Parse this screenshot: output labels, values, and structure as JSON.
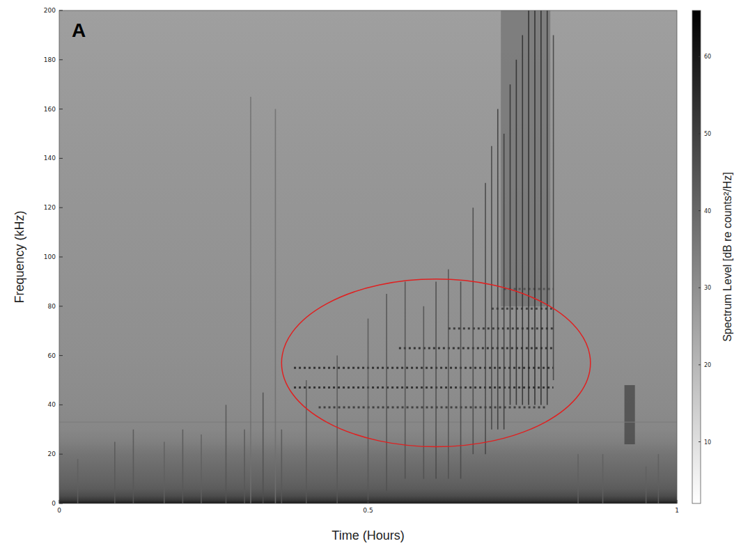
{
  "chart_data": {
    "type": "heatmap",
    "panel": "A",
    "x_label": "Time (Hours)",
    "y_label": "Frequency (kHz)",
    "xlim": [
      0,
      1
    ],
    "xticks": [
      0,
      0.5,
      1
    ],
    "ylim": [
      0,
      200
    ],
    "yticks": [
      0,
      20,
      40,
      60,
      80,
      100,
      120,
      140,
      160,
      180,
      200
    ],
    "colorbar": {
      "label": "Spectrum Level [dB re counts²/Hz]",
      "range": [
        2,
        66
      ],
      "ticks": [
        10,
        20,
        30,
        40,
        50,
        60
      ]
    },
    "background": {
      "frequencies": [
        0,
        1,
        3,
        6,
        10,
        15,
        20,
        25,
        30,
        40,
        60,
        100,
        140,
        170,
        200
      ],
      "levels": [
        62,
        53,
        47,
        43,
        41,
        39,
        37,
        34,
        32,
        31,
        30,
        29,
        28,
        27,
        26
      ]
    },
    "patches": [
      {
        "t0": 0.715,
        "t1": 0.795,
        "f0": 80,
        "f1": 200,
        "level": 38
      },
      {
        "t0": 0.915,
        "t1": 0.932,
        "f0": 24,
        "f1": 48,
        "level": 50
      }
    ],
    "clicks": [
      {
        "time": 0.03,
        "f_min": 0,
        "f_max": 18,
        "level": 42
      },
      {
        "time": 0.09,
        "f_min": 0,
        "f_max": 25,
        "level": 44
      },
      {
        "time": 0.12,
        "f_min": 0,
        "f_max": 30,
        "level": 44
      },
      {
        "time": 0.17,
        "f_min": 0,
        "f_max": 25,
        "level": 42
      },
      {
        "time": 0.2,
        "f_min": 0,
        "f_max": 30,
        "level": 44
      },
      {
        "time": 0.23,
        "f_min": 0,
        "f_max": 28,
        "level": 42
      },
      {
        "time": 0.27,
        "f_min": 0,
        "f_max": 40,
        "level": 45
      },
      {
        "time": 0.3,
        "f_min": 0,
        "f_max": 30,
        "level": 44
      },
      {
        "time": 0.31,
        "f_min": 0,
        "f_max": 165,
        "level": 38
      },
      {
        "time": 0.33,
        "f_min": 0,
        "f_max": 45,
        "level": 46
      },
      {
        "time": 0.35,
        "f_min": 0,
        "f_max": 160,
        "level": 38
      },
      {
        "time": 0.36,
        "f_min": 0,
        "f_max": 30,
        "level": 44
      },
      {
        "time": 0.4,
        "f_min": 0,
        "f_max": 50,
        "level": 44
      },
      {
        "time": 0.45,
        "f_min": 0,
        "f_max": 60,
        "level": 44
      },
      {
        "time": 0.5,
        "f_min": 0,
        "f_max": 75,
        "level": 44
      },
      {
        "time": 0.53,
        "f_min": 5,
        "f_max": 85,
        "level": 46
      },
      {
        "time": 0.56,
        "f_min": 10,
        "f_max": 90,
        "level": 46
      },
      {
        "time": 0.59,
        "f_min": 10,
        "f_max": 80,
        "level": 46
      },
      {
        "time": 0.61,
        "f_min": 10,
        "f_max": 90,
        "level": 48
      },
      {
        "time": 0.63,
        "f_min": 10,
        "f_max": 95,
        "level": 46
      },
      {
        "time": 0.65,
        "f_min": 10,
        "f_max": 90,
        "level": 48
      },
      {
        "time": 0.67,
        "f_min": 20,
        "f_max": 120,
        "level": 48
      },
      {
        "time": 0.69,
        "f_min": 20,
        "f_max": 130,
        "level": 50
      },
      {
        "time": 0.7,
        "f_min": 30,
        "f_max": 145,
        "level": 50
      },
      {
        "time": 0.71,
        "f_min": 30,
        "f_max": 160,
        "level": 52
      },
      {
        "time": 0.72,
        "f_min": 30,
        "f_max": 150,
        "level": 52
      },
      {
        "time": 0.73,
        "f_min": 40,
        "f_max": 170,
        "level": 54
      },
      {
        "time": 0.74,
        "f_min": 40,
        "f_max": 180,
        "level": 55
      },
      {
        "time": 0.75,
        "f_min": 40,
        "f_max": 190,
        "level": 55
      },
      {
        "time": 0.76,
        "f_min": 40,
        "f_max": 200,
        "level": 56
      },
      {
        "time": 0.77,
        "f_min": 40,
        "f_max": 200,
        "level": 56
      },
      {
        "time": 0.78,
        "f_min": 40,
        "f_max": 200,
        "level": 56
      },
      {
        "time": 0.79,
        "f_min": 40,
        "f_max": 200,
        "level": 55
      },
      {
        "time": 0.8,
        "f_min": 50,
        "f_max": 190,
        "level": 50
      },
      {
        "time": 0.84,
        "f_min": 0,
        "f_max": 20,
        "level": 42
      },
      {
        "time": 0.88,
        "f_min": 0,
        "f_max": 20,
        "level": 42
      },
      {
        "time": 0.95,
        "f_min": 0,
        "f_max": 15,
        "level": 42
      },
      {
        "time": 0.97,
        "f_min": 0,
        "f_max": 20,
        "level": 42
      }
    ],
    "bands": [
      {
        "f": 33,
        "t0": 0,
        "t1": 1,
        "level": 35,
        "line_style": "solid"
      },
      {
        "f": 39,
        "t0": 0.42,
        "t1": 0.79,
        "level": 50,
        "line_style": "dotted"
      },
      {
        "f": 47,
        "t0": 0.38,
        "t1": 0.8,
        "level": 53,
        "line_style": "dotted"
      },
      {
        "f": 55,
        "t0": 0.38,
        "t1": 0.8,
        "level": 53,
        "line_style": "dotted"
      },
      {
        "f": 63,
        "t0": 0.55,
        "t1": 0.8,
        "level": 53,
        "line_style": "dotted"
      },
      {
        "f": 71,
        "t0": 0.63,
        "t1": 0.8,
        "level": 51,
        "line_style": "dotted"
      },
      {
        "f": 79,
        "t0": 0.7,
        "t1": 0.8,
        "level": 49,
        "line_style": "dotted"
      },
      {
        "f": 87,
        "t0": 0.72,
        "t1": 0.8,
        "level": 45,
        "line_style": "dotted"
      }
    ],
    "ellipse": {
      "x": [
        0.36,
        0.86
      ],
      "y": [
        23,
        91
      ],
      "color": "#e02020"
    }
  }
}
